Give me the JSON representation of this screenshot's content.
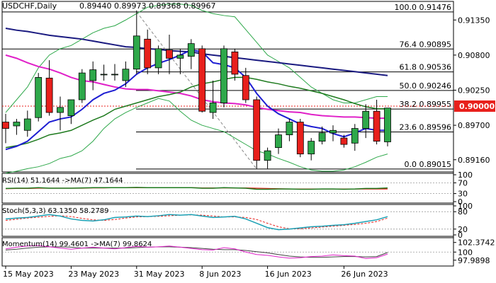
{
  "header": {
    "symbol": "USDCHF,Daily",
    "ohlc": "0.89440 0.89973 0.89368 0.89967"
  },
  "colors": {
    "bull": "#2ea84a",
    "bear": "#e8201c",
    "ma_fast": "#1e1ed2",
    "ma_slow": "#1a1a80",
    "ma_magenta": "#e020c8",
    "ma_green": "#1e7a1e",
    "bollinger": "#2ea84a",
    "current_price": "#e8201c"
  },
  "chart_data": [
    {
      "type": "candlestick",
      "title": "USDCHF,Daily",
      "ylim": [
        0.8898,
        0.9163
      ],
      "yticks": [
        "0.91350",
        "0.90800",
        "0.90250",
        "0.89700",
        "0.89160"
      ],
      "ytick_values": [
        0.9135,
        0.908,
        0.9025,
        0.897,
        0.8916
      ],
      "xticks": [
        "15 May 2023",
        "23 May 2023",
        "31 May 2023",
        "8 Jun 2023",
        "16 Jun 2023",
        "26 Jun 2023"
      ],
      "xtick_index": [
        0,
        6,
        12,
        18,
        24,
        31
      ],
      "current_price": "0.90000",
      "current_price_value": 0.9,
      "fib_levels": [
        {
          "label": "100.0 0.91476",
          "value": 0.91476
        },
        {
          "label": "76.4 0.90895",
          "value": 0.90895
        },
        {
          "label": "61.8 0.90536",
          "value": 0.90536
        },
        {
          "label": "50.0 0.90246",
          "value": 0.90246
        },
        {
          "label": "38.2 0.89955",
          "value": 0.89955
        },
        {
          "label": "23.6 0.89596",
          "value": 0.89596
        },
        {
          "label": "0.0 0.89015",
          "value": 0.89015
        }
      ],
      "candles": [
        {
          "o": 0.8975,
          "h": 0.8988,
          "l": 0.8942,
          "c": 0.8965
        },
        {
          "o": 0.8969,
          "h": 0.898,
          "l": 0.8955,
          "c": 0.8975
        },
        {
          "o": 0.8962,
          "h": 0.8993,
          "l": 0.8952,
          "c": 0.898
        },
        {
          "o": 0.8982,
          "h": 0.9052,
          "l": 0.8976,
          "c": 0.9045
        },
        {
          "o": 0.9044,
          "h": 0.9072,
          "l": 0.8985,
          "c": 0.899
        },
        {
          "o": 0.899,
          "h": 0.9015,
          "l": 0.8962,
          "c": 0.8998
        },
        {
          "o": 0.8985,
          "h": 0.9008,
          "l": 0.8972,
          "c": 0.901
        },
        {
          "o": 0.901,
          "h": 0.9058,
          "l": 0.9005,
          "c": 0.9052
        },
        {
          "o": 0.904,
          "h": 0.907,
          "l": 0.9025,
          "c": 0.9057
        },
        {
          "o": 0.905,
          "h": 0.9065,
          "l": 0.904,
          "c": 0.905
        },
        {
          "o": 0.905,
          "h": 0.9066,
          "l": 0.904,
          "c": 0.905
        },
        {
          "o": 0.904,
          "h": 0.907,
          "l": 0.903,
          "c": 0.9058
        },
        {
          "o": 0.9058,
          "h": 0.915,
          "l": 0.905,
          "c": 0.911
        },
        {
          "o": 0.9105,
          "h": 0.912,
          "l": 0.905,
          "c": 0.906
        },
        {
          "o": 0.906,
          "h": 0.9095,
          "l": 0.905,
          "c": 0.909
        },
        {
          "o": 0.9088,
          "h": 0.9112,
          "l": 0.905,
          "c": 0.9075
        },
        {
          "o": 0.9075,
          "h": 0.909,
          "l": 0.905,
          "c": 0.908
        },
        {
          "o": 0.9078,
          "h": 0.9105,
          "l": 0.9058,
          "c": 0.9098
        },
        {
          "o": 0.909,
          "h": 0.9095,
          "l": 0.899,
          "c": 0.8992
        },
        {
          "o": 0.899,
          "h": 0.904,
          "l": 0.898,
          "c": 0.9005
        },
        {
          "o": 0.9005,
          "h": 0.9095,
          "l": 0.8998,
          "c": 0.909
        },
        {
          "o": 0.9085,
          "h": 0.909,
          "l": 0.904,
          "c": 0.905
        },
        {
          "o": 0.9048,
          "h": 0.906,
          "l": 0.9005,
          "c": 0.901
        },
        {
          "o": 0.901,
          "h": 0.9015,
          "l": 0.8902,
          "c": 0.8915
        },
        {
          "o": 0.8915,
          "h": 0.8935,
          "l": 0.8902,
          "c": 0.893
        },
        {
          "o": 0.8935,
          "h": 0.8965,
          "l": 0.8925,
          "c": 0.8955
        },
        {
          "o": 0.8955,
          "h": 0.898,
          "l": 0.8945,
          "c": 0.8975
        },
        {
          "o": 0.8975,
          "h": 0.898,
          "l": 0.892,
          "c": 0.8925
        },
        {
          "o": 0.8925,
          "h": 0.895,
          "l": 0.8915,
          "c": 0.8945
        },
        {
          "o": 0.8945,
          "h": 0.8968,
          "l": 0.894,
          "c": 0.8958
        },
        {
          "o": 0.8958,
          "h": 0.897,
          "l": 0.8945,
          "c": 0.8962
        },
        {
          "o": 0.895,
          "h": 0.8955,
          "l": 0.8935,
          "c": 0.894
        },
        {
          "o": 0.8942,
          "h": 0.8972,
          "l": 0.893,
          "c": 0.8965
        },
        {
          "o": 0.8965,
          "h": 0.9003,
          "l": 0.895,
          "c": 0.8992
        },
        {
          "o": 0.8992,
          "h": 0.901,
          "l": 0.894,
          "c": 0.8945
        },
        {
          "o": 0.8944,
          "h": 0.8997,
          "l": 0.8937,
          "c": 0.8997
        }
      ],
      "series": [
        {
          "key": "ma_slow",
          "values": [
            0.9122,
            0.9119,
            0.9117,
            0.9114,
            0.9111,
            0.9109,
            0.9107,
            0.9105,
            0.9102,
            0.9099,
            0.9096,
            0.9093,
            0.9092,
            0.909,
            0.9089,
            0.9087,
            0.9086,
            0.9085,
            0.9082,
            0.908,
            0.9078,
            0.9076,
            0.9074,
            0.9072,
            0.907,
            0.9068,
            0.9066,
            0.9064,
            0.9062,
            0.906,
            0.9058,
            0.9056,
            0.9054,
            0.9052,
            0.905,
            0.9048
          ]
        },
        {
          "key": "ma_magenta",
          "values": [
            0.908,
            0.9075,
            0.9068,
            0.9062,
            0.9058,
            0.9052,
            0.9045,
            0.904,
            0.9038,
            0.9034,
            0.903,
            0.9027,
            0.9026,
            0.9026,
            0.9024,
            0.9022,
            0.902,
            0.9016,
            0.901,
            0.9007,
            0.9005,
            0.9004,
            0.9002,
            0.8998,
            0.8995,
            0.8993,
            0.8991,
            0.899,
            0.8987,
            0.8985,
            0.8984,
            0.8983,
            0.8983,
            0.8982,
            0.8981,
            0.8981
          ]
        },
        {
          "key": "ma_green",
          "values": [
            0.8935,
            0.8938,
            0.8942,
            0.8948,
            0.8955,
            0.8958,
            0.8962,
            0.897,
            0.8978,
            0.8985,
            0.8995,
            0.9,
            0.9005,
            0.901,
            0.9015,
            0.9018,
            0.9022,
            0.903,
            0.9035,
            0.9038,
            0.9042,
            0.9045,
            0.9045,
            0.9042,
            0.9038,
            0.9035,
            0.9031,
            0.9028,
            0.9024,
            0.902,
            0.9015,
            0.901,
            0.9004,
            0.8999,
            0.8996,
            0.8996
          ]
        },
        {
          "key": "ma_fast",
          "values": [
            0.8932,
            0.8937,
            0.8945,
            0.896,
            0.8975,
            0.898,
            0.8983,
            0.8995,
            0.901,
            0.902,
            0.9025,
            0.9035,
            0.905,
            0.906,
            0.9067,
            0.9073,
            0.908,
            0.9088,
            0.9085,
            0.9068,
            0.9065,
            0.906,
            0.9045,
            0.902,
            0.9,
            0.8988,
            0.898,
            0.8972,
            0.8968,
            0.8965,
            0.8957,
            0.8952,
            0.8958,
            0.8965,
            0.8962,
            0.8962
          ]
        },
        {
          "key": "boll_up",
          "values": [
            0.899,
            0.901,
            0.903,
            0.906,
            0.908,
            0.909,
            0.9095,
            0.9105,
            0.9115,
            0.9122,
            0.9126,
            0.9135,
            0.9145,
            0.9155,
            0.9158,
            0.916,
            0.916,
            0.9158,
            0.915,
            0.9145,
            0.9142,
            0.914,
            0.912,
            0.91,
            0.908,
            0.907,
            0.906,
            0.9045,
            0.903,
            0.902,
            0.901,
            0.9005,
            0.9005,
            0.901,
            0.9015,
            0.9015
          ]
        },
        {
          "key": "boll_low",
          "values": [
            0.8895,
            0.8898,
            0.8902,
            0.8905,
            0.891,
            0.8918,
            0.8922,
            0.893,
            0.8945,
            0.8965,
            0.898,
            0.899,
            0.8998,
            0.9005,
            0.9012,
            0.9008,
            0.8992,
            0.8978,
            0.897,
            0.8965,
            0.896,
            0.895,
            0.894,
            0.893,
            0.8925,
            0.8918,
            0.8912,
            0.8905,
            0.89,
            0.8898,
            0.8898,
            0.89,
            0.8905,
            0.8912,
            0.892,
            0.8925
          ]
        }
      ]
    },
    {
      "type": "line",
      "title": "RSI(14) 51.1644 ->MA(7) 47.1644",
      "ylim": [
        0,
        100
      ],
      "yticks": [
        "100",
        "70",
        "30",
        "0"
      ],
      "ytick_values": [
        100,
        70,
        30,
        0
      ],
      "series": [
        {
          "key": "rsi",
          "values": [
            49,
            50,
            50,
            52,
            50,
            50,
            50,
            51,
            52,
            52,
            52,
            52,
            53,
            52,
            52,
            52,
            52,
            52,
            50,
            50,
            52,
            51,
            50,
            46,
            46,
            47,
            47,
            46,
            46,
            47,
            47,
            46,
            47,
            49,
            49,
            51
          ]
        },
        {
          "key": "rsi_ma",
          "values": [
            48,
            49,
            49,
            50,
            50,
            50,
            50,
            50,
            51,
            51,
            52,
            52,
            52,
            52,
            52,
            52,
            52,
            52,
            51,
            51,
            51,
            51,
            51,
            50,
            49,
            48,
            47,
            47,
            47,
            47,
            47,
            47,
            47,
            47,
            47,
            47
          ]
        }
      ]
    },
    {
      "type": "line",
      "title": "Stoch(5,3,3) 63.1350 58.2789",
      "ylim": [
        0,
        100
      ],
      "yticks": [
        "100",
        "80",
        "20",
        "0"
      ],
      "ytick_values": [
        100,
        80,
        20,
        0
      ],
      "series": [
        {
          "key": "stoch_k",
          "values": [
            55,
            58,
            60,
            65,
            70,
            65,
            55,
            50,
            48,
            52,
            60,
            62,
            65,
            63,
            66,
            70,
            68,
            70,
            65,
            60,
            62,
            64,
            55,
            40,
            25,
            18,
            20,
            24,
            28,
            30,
            33,
            35,
            40,
            46,
            52,
            63
          ]
        },
        {
          "key": "stoch_d",
          "values": [
            50,
            54,
            58,
            61,
            64,
            66,
            63,
            57,
            52,
            50,
            53,
            58,
            62,
            63,
            64,
            66,
            68,
            69,
            68,
            65,
            62,
            62,
            60,
            53,
            40,
            28,
            21,
            21,
            24,
            27,
            30,
            33,
            36,
            40,
            46,
            58
          ]
        }
      ]
    },
    {
      "type": "line",
      "title": "Momentum(14) 99.4601 ->MA(7) 99.8624",
      "ylim": [
        96.9,
        103.2
      ],
      "yticks": [
        "102.3742",
        "100",
        "97.9898"
      ],
      "ytick_values": [
        102.3742,
        100,
        97.9898
      ],
      "series": [
        {
          "key": "mom",
          "values": [
            100.8,
            101.2,
            101.5,
            101.6,
            101.3,
            101.0,
            100.7,
            101.0,
            101.2,
            101.0,
            100.8,
            101.1,
            101.4,
            101.2,
            101.3,
            101.5,
            101.2,
            100.9,
            100.6,
            100.5,
            101.1,
            100.8,
            100.0,
            99.4,
            99.2,
            98.8,
            98.5,
            98.6,
            98.9,
            99.0,
            99.3,
            99.1,
            99.0,
            98.4,
            98.6,
            99.5
          ]
        },
        {
          "key": "mom_ma",
          "values": [
            100.5,
            100.7,
            101.0,
            101.2,
            101.3,
            101.3,
            101.2,
            101.0,
            101.0,
            101.0,
            101.0,
            101.0,
            101.1,
            101.2,
            101.3,
            101.3,
            101.2,
            101.1,
            100.9,
            100.7,
            100.6,
            100.6,
            100.4,
            100.1,
            99.8,
            99.4,
            99.0,
            98.8,
            98.7,
            98.7,
            98.8,
            98.9,
            98.9,
            98.8,
            98.9,
            99.9
          ]
        }
      ]
    }
  ]
}
